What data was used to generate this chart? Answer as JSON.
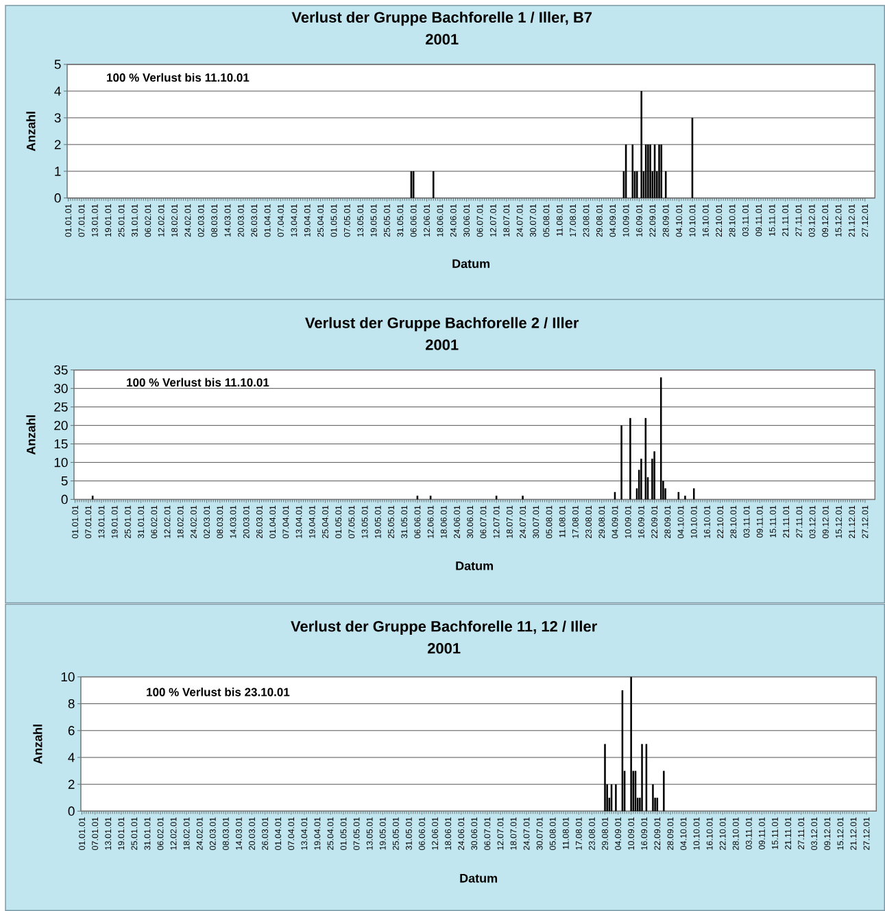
{
  "chart_data": [
    {
      "type": "bar",
      "title": "Verlust der Gruppe Bachforelle 1 / Iller, B7",
      "subtitle": "2001",
      "xlabel": "Datum",
      "ylabel": "Anzahl",
      "annotations": [
        "100 % Verlust bis 11.10.01"
      ],
      "color": "#000000",
      "grid": "y",
      "x": [
        "2001-06-05",
        "2001-06-06",
        "2001-06-15",
        "2001-09-09",
        "2001-09-10",
        "2001-09-13",
        "2001-09-14",
        "2001-09-15",
        "2001-09-17",
        "2001-09-18",
        "2001-09-19",
        "2001-09-20",
        "2001-09-21",
        "2001-09-22",
        "2001-09-23",
        "2001-09-24",
        "2001-09-25",
        "2001-09-26",
        "2001-09-28",
        "2001-10-10"
      ],
      "values": [
        1,
        1,
        1,
        1,
        2,
        2,
        1,
        1,
        4,
        1,
        2,
        2,
        2,
        1,
        2,
        1,
        2,
        2,
        1,
        3
      ],
      "ylim": [
        0,
        5
      ],
      "yticks": [
        0,
        1,
        2,
        3,
        4,
        5
      ],
      "xlim": [
        "2001-01-01",
        "2002-01-01"
      ],
      "xticks": [
        {
          "value": "2001-01-01",
          "label": "01.01.01"
        },
        {
          "value": "2001-01-07",
          "label": "07.01.01"
        },
        {
          "value": "2001-01-13",
          "label": "13.01.01"
        },
        {
          "value": "2001-01-19",
          "label": "19.01.01"
        },
        {
          "value": "2001-01-25",
          "label": "25.01.01"
        },
        {
          "value": "2001-01-31",
          "label": "31.01.01"
        },
        {
          "value": "2001-02-06",
          "label": "06.02.01"
        },
        {
          "value": "2001-02-12",
          "label": "12.02.01"
        },
        {
          "value": "2001-02-18",
          "label": "18.02.01"
        },
        {
          "value": "2001-02-24",
          "label": "24.02.01"
        },
        {
          "value": "2001-03-02",
          "label": "02.03.01"
        },
        {
          "value": "2001-03-08",
          "label": "08.03.01"
        },
        {
          "value": "2001-03-14",
          "label": "14.03.01"
        },
        {
          "value": "2001-03-20",
          "label": "20.03.01"
        },
        {
          "value": "2001-03-26",
          "label": "26.03.01"
        },
        {
          "value": "2001-04-01",
          "label": "01.04.01"
        },
        {
          "value": "2001-04-07",
          "label": "07.04.01"
        },
        {
          "value": "2001-04-13",
          "label": "13.04.01"
        },
        {
          "value": "2001-04-19",
          "label": "19.04.01"
        },
        {
          "value": "2001-04-25",
          "label": "25.04.01"
        },
        {
          "value": "2001-05-01",
          "label": "01.05.01"
        },
        {
          "value": "2001-05-07",
          "label": "07.05.01"
        },
        {
          "value": "2001-05-13",
          "label": "13.05.01"
        },
        {
          "value": "2001-05-19",
          "label": "19.05.01"
        },
        {
          "value": "2001-05-25",
          "label": "25.05.01"
        },
        {
          "value": "2001-05-31",
          "label": "31.05.01"
        },
        {
          "value": "2001-06-06",
          "label": "06.06.01"
        },
        {
          "value": "2001-06-12",
          "label": "12.06.01"
        },
        {
          "value": "2001-06-18",
          "label": "18.06.01"
        },
        {
          "value": "2001-06-24",
          "label": "24.06.01"
        },
        {
          "value": "2001-06-30",
          "label": "30.06.01"
        },
        {
          "value": "2001-07-06",
          "label": "06.07.01"
        },
        {
          "value": "2001-07-12",
          "label": "12.07.01"
        },
        {
          "value": "2001-07-18",
          "label": "18.07.01"
        },
        {
          "value": "2001-07-24",
          "label": "24.07.01"
        },
        {
          "value": "2001-07-30",
          "label": "30.07.01"
        },
        {
          "value": "2001-08-05",
          "label": "05.08.01"
        },
        {
          "value": "2001-08-11",
          "label": "11.08.01"
        },
        {
          "value": "2001-08-17",
          "label": "17.08.01"
        },
        {
          "value": "2001-08-23",
          "label": "23.08.01"
        },
        {
          "value": "2001-08-29",
          "label": "29.08.01"
        },
        {
          "value": "2001-09-04",
          "label": "04.09.01"
        },
        {
          "value": "2001-09-10",
          "label": "10.09.01"
        },
        {
          "value": "2001-09-16",
          "label": "16.09.01"
        },
        {
          "value": "2001-09-22",
          "label": "22.09.01"
        },
        {
          "value": "2001-09-28",
          "label": "28.09.01"
        },
        {
          "value": "2001-10-04",
          "label": "04.10.01"
        },
        {
          "value": "2001-10-10",
          "label": "10.10.01"
        },
        {
          "value": "2001-10-16",
          "label": "16.10.01"
        },
        {
          "value": "2001-10-22",
          "label": "22.10.01"
        },
        {
          "value": "2001-10-28",
          "label": "28.10.01"
        },
        {
          "value": "2001-11-03",
          "label": "03.11.01"
        },
        {
          "value": "2001-11-09",
          "label": "09.11.01"
        },
        {
          "value": "2001-11-15",
          "label": "15.11.01"
        },
        {
          "value": "2001-11-21",
          "label": "21.11.01"
        },
        {
          "value": "2001-11-27",
          "label": "27.11.01"
        },
        {
          "value": "2001-12-03",
          "label": "03.12.01"
        },
        {
          "value": "2001-12-09",
          "label": "09.12.01"
        },
        {
          "value": "2001-12-15",
          "label": "15.12.01"
        },
        {
          "value": "2001-12-21",
          "label": "21.12.01"
        },
        {
          "value": "2001-12-27",
          "label": "27.12.01"
        }
      ]
    },
    {
      "type": "bar",
      "title": "Verlust der Gruppe Bachforelle 2 / Iller",
      "subtitle": "2001",
      "xlabel": "Datum",
      "ylabel": "Anzahl",
      "annotations": [
        "100 % Verlust bis 11.10.01"
      ],
      "color": "#000000",
      "grid": "y",
      "x": [
        "2001-01-09",
        "2001-06-06",
        "2001-06-12",
        "2001-07-12",
        "2001-07-24",
        "2001-09-04",
        "2001-09-07",
        "2001-09-11",
        "2001-09-14",
        "2001-09-15",
        "2001-09-16",
        "2001-09-18",
        "2001-09-19",
        "2001-09-21",
        "2001-09-22",
        "2001-09-25",
        "2001-09-26",
        "2001-09-27",
        "2001-10-03",
        "2001-10-06",
        "2001-10-10"
      ],
      "values": [
        1,
        1,
        1,
        1,
        1,
        2,
        20,
        22,
        3,
        8,
        11,
        22,
        6,
        11,
        13,
        33,
        5,
        3,
        2,
        1,
        3
      ],
      "ylim": [
        0,
        35
      ],
      "yticks": [
        0,
        5,
        10,
        15,
        20,
        25,
        30,
        35
      ],
      "xlim": [
        "2001-01-01",
        "2002-01-01"
      ],
      "xticks": [
        {
          "value": "2001-01-01",
          "label": "01.01.01"
        },
        {
          "value": "2001-01-07",
          "label": "07.01.01"
        },
        {
          "value": "2001-01-13",
          "label": "13.01.01"
        },
        {
          "value": "2001-01-19",
          "label": "19.01.01"
        },
        {
          "value": "2001-01-25",
          "label": "25.01.01"
        },
        {
          "value": "2001-01-31",
          "label": "31.01.01"
        },
        {
          "value": "2001-02-06",
          "label": "06.02.01"
        },
        {
          "value": "2001-02-12",
          "label": "12.02.01"
        },
        {
          "value": "2001-02-18",
          "label": "18.02.01"
        },
        {
          "value": "2001-02-24",
          "label": "24.02.01"
        },
        {
          "value": "2001-03-02",
          "label": "02.03.01"
        },
        {
          "value": "2001-03-08",
          "label": "08.03.01"
        },
        {
          "value": "2001-03-14",
          "label": "14.03.01"
        },
        {
          "value": "2001-03-20",
          "label": "20.03.01"
        },
        {
          "value": "2001-03-26",
          "label": "26.03.01"
        },
        {
          "value": "2001-04-01",
          "label": "01.04.01"
        },
        {
          "value": "2001-04-07",
          "label": "07.04.01"
        },
        {
          "value": "2001-04-13",
          "label": "13.04.01"
        },
        {
          "value": "2001-04-19",
          "label": "19.04.01"
        },
        {
          "value": "2001-04-25",
          "label": "25.04.01"
        },
        {
          "value": "2001-05-01",
          "label": "01.05.01"
        },
        {
          "value": "2001-05-07",
          "label": "07.05.01"
        },
        {
          "value": "2001-05-13",
          "label": "13.05.01"
        },
        {
          "value": "2001-05-19",
          "label": "19.05.01"
        },
        {
          "value": "2001-05-25",
          "label": "25.05.01"
        },
        {
          "value": "2001-05-31",
          "label": "31.05.01"
        },
        {
          "value": "2001-06-06",
          "label": "06.06.01"
        },
        {
          "value": "2001-06-12",
          "label": "12.06.01"
        },
        {
          "value": "2001-06-18",
          "label": "18.06.01"
        },
        {
          "value": "2001-06-24",
          "label": "24.06.01"
        },
        {
          "value": "2001-06-30",
          "label": "30.06.01"
        },
        {
          "value": "2001-07-06",
          "label": "06.07.01"
        },
        {
          "value": "2001-07-12",
          "label": "12.07.01"
        },
        {
          "value": "2001-07-18",
          "label": "18.07.01"
        },
        {
          "value": "2001-07-24",
          "label": "24.07.01"
        },
        {
          "value": "2001-07-30",
          "label": "30.07.01"
        },
        {
          "value": "2001-08-05",
          "label": "05.08.01"
        },
        {
          "value": "2001-08-11",
          "label": "11.08.01"
        },
        {
          "value": "2001-08-17",
          "label": "17.08.01"
        },
        {
          "value": "2001-08-23",
          "label": "23.08.01"
        },
        {
          "value": "2001-08-29",
          "label": "29.08.01"
        },
        {
          "value": "2001-09-04",
          "label": "04.09.01"
        },
        {
          "value": "2001-09-10",
          "label": "10.09.01"
        },
        {
          "value": "2001-09-16",
          "label": "16.09.01"
        },
        {
          "value": "2001-09-22",
          "label": "22.09.01"
        },
        {
          "value": "2001-09-28",
          "label": "28.09.01"
        },
        {
          "value": "2001-10-04",
          "label": "04.10.01"
        },
        {
          "value": "2001-10-10",
          "label": "10.10.01"
        },
        {
          "value": "2001-10-16",
          "label": "16.10.01"
        },
        {
          "value": "2001-10-22",
          "label": "22.10.01"
        },
        {
          "value": "2001-10-28",
          "label": "28.10.01"
        },
        {
          "value": "2001-11-03",
          "label": "03.11.01"
        },
        {
          "value": "2001-11-09",
          "label": "09.11.01"
        },
        {
          "value": "2001-11-15",
          "label": "15.11.01"
        },
        {
          "value": "2001-11-21",
          "label": "21.11.01"
        },
        {
          "value": "2001-11-27",
          "label": "27.11.01"
        },
        {
          "value": "2001-12-03",
          "label": "03.12.01"
        },
        {
          "value": "2001-12-09",
          "label": "09.12.01"
        },
        {
          "value": "2001-12-15",
          "label": "15.12.01"
        },
        {
          "value": "2001-12-21",
          "label": "21.12.01"
        },
        {
          "value": "2001-12-27",
          "label": "27.12.01"
        }
      ]
    },
    {
      "type": "bar",
      "title": "Verlust der Gruppe Bachforelle 11, 12 / Iller",
      "subtitle": "2001",
      "xlabel": "Datum",
      "ylabel": "Anzahl",
      "annotations": [
        "100 % Verlust bis 23.10.01"
      ],
      "color": "#000000",
      "grid": "y",
      "x": [
        "2001-08-29",
        "2001-08-30",
        "2001-08-31",
        "2001-09-01",
        "2001-09-03",
        "2001-09-06",
        "2001-09-07",
        "2001-09-10",
        "2001-09-11",
        "2001-09-12",
        "2001-09-13",
        "2001-09-14",
        "2001-09-15",
        "2001-09-17",
        "2001-09-20",
        "2001-09-21",
        "2001-09-22",
        "2001-09-25"
      ],
      "values": [
        5,
        2,
        1,
        2,
        2,
        9,
        3,
        10,
        3,
        3,
        1,
        1,
        5,
        5,
        2,
        1,
        1,
        3
      ],
      "ylim": [
        0,
        10
      ],
      "yticks": [
        0,
        2,
        4,
        6,
        8,
        10
      ],
      "xlim": [
        "2001-01-01",
        "2002-01-01"
      ],
      "xticks": [
        {
          "value": "2001-01-01",
          "label": "01.01.01"
        },
        {
          "value": "2001-01-07",
          "label": "07.01.01"
        },
        {
          "value": "2001-01-13",
          "label": "13.01.01"
        },
        {
          "value": "2001-01-19",
          "label": "19.01.01"
        },
        {
          "value": "2001-01-25",
          "label": "25.01.01"
        },
        {
          "value": "2001-01-31",
          "label": "31.01.01"
        },
        {
          "value": "2001-02-06",
          "label": "06.02.01"
        },
        {
          "value": "2001-02-12",
          "label": "12.02.01"
        },
        {
          "value": "2001-02-18",
          "label": "18.02.01"
        },
        {
          "value": "2001-02-24",
          "label": "24.02.01"
        },
        {
          "value": "2001-03-02",
          "label": "02.03.01"
        },
        {
          "value": "2001-03-08",
          "label": "08.03.01"
        },
        {
          "value": "2001-03-14",
          "label": "14.03.01"
        },
        {
          "value": "2001-03-20",
          "label": "20.03.01"
        },
        {
          "value": "2001-03-26",
          "label": "26.03.01"
        },
        {
          "value": "2001-04-01",
          "label": "01.04.01"
        },
        {
          "value": "2001-04-07",
          "label": "07.04.01"
        },
        {
          "value": "2001-04-13",
          "label": "13.04.01"
        },
        {
          "value": "2001-04-19",
          "label": "19.04.01"
        },
        {
          "value": "2001-04-25",
          "label": "25.04.01"
        },
        {
          "value": "2001-05-01",
          "label": "01.05.01"
        },
        {
          "value": "2001-05-07",
          "label": "07.05.01"
        },
        {
          "value": "2001-05-13",
          "label": "13.05.01"
        },
        {
          "value": "2001-05-19",
          "label": "19.05.01"
        },
        {
          "value": "2001-05-25",
          "label": "25.05.01"
        },
        {
          "value": "2001-05-31",
          "label": "31.05.01"
        },
        {
          "value": "2001-06-06",
          "label": "06.06.01"
        },
        {
          "value": "2001-06-12",
          "label": "12.06.01"
        },
        {
          "value": "2001-06-18",
          "label": "18.06.01"
        },
        {
          "value": "2001-06-24",
          "label": "24.06.01"
        },
        {
          "value": "2001-06-30",
          "label": "30.06.01"
        },
        {
          "value": "2001-07-06",
          "label": "06.07.01"
        },
        {
          "value": "2001-07-12",
          "label": "12.07.01"
        },
        {
          "value": "2001-07-18",
          "label": "18.07.01"
        },
        {
          "value": "2001-07-24",
          "label": "24.07.01"
        },
        {
          "value": "2001-07-30",
          "label": "30.07.01"
        },
        {
          "value": "2001-08-05",
          "label": "05.08.01"
        },
        {
          "value": "2001-08-11",
          "label": "11.08.01"
        },
        {
          "value": "2001-08-17",
          "label": "17.08.01"
        },
        {
          "value": "2001-08-23",
          "label": "23.08.01"
        },
        {
          "value": "2001-08-29",
          "label": "29.08.01"
        },
        {
          "value": "2001-09-04",
          "label": "04.09.01"
        },
        {
          "value": "2001-09-10",
          "label": "10.09.01"
        },
        {
          "value": "2001-09-16",
          "label": "16.09.01"
        },
        {
          "value": "2001-09-22",
          "label": "22.09.01"
        },
        {
          "value": "2001-09-28",
          "label": "28.09.01"
        },
        {
          "value": "2001-10-04",
          "label": "04.10.01"
        },
        {
          "value": "2001-10-10",
          "label": "10.10.01"
        },
        {
          "value": "2001-10-16",
          "label": "16.10.01"
        },
        {
          "value": "2001-10-22",
          "label": "22.10.01"
        },
        {
          "value": "2001-10-28",
          "label": "28.10.01"
        },
        {
          "value": "2001-11-03",
          "label": "03.11.01"
        },
        {
          "value": "2001-11-09",
          "label": "09.11.01"
        },
        {
          "value": "2001-11-15",
          "label": "15.11.01"
        },
        {
          "value": "2001-11-21",
          "label": "21.11.01"
        },
        {
          "value": "2001-11-27",
          "label": "27.11.01"
        },
        {
          "value": "2001-12-03",
          "label": "03.12.01"
        },
        {
          "value": "2001-12-09",
          "label": "09.12.01"
        },
        {
          "value": "2001-12-15",
          "label": "15.12.01"
        },
        {
          "value": "2001-12-21",
          "label": "21.12.01"
        },
        {
          "value": "2001-12-27",
          "label": "27.12.01"
        }
      ]
    }
  ]
}
